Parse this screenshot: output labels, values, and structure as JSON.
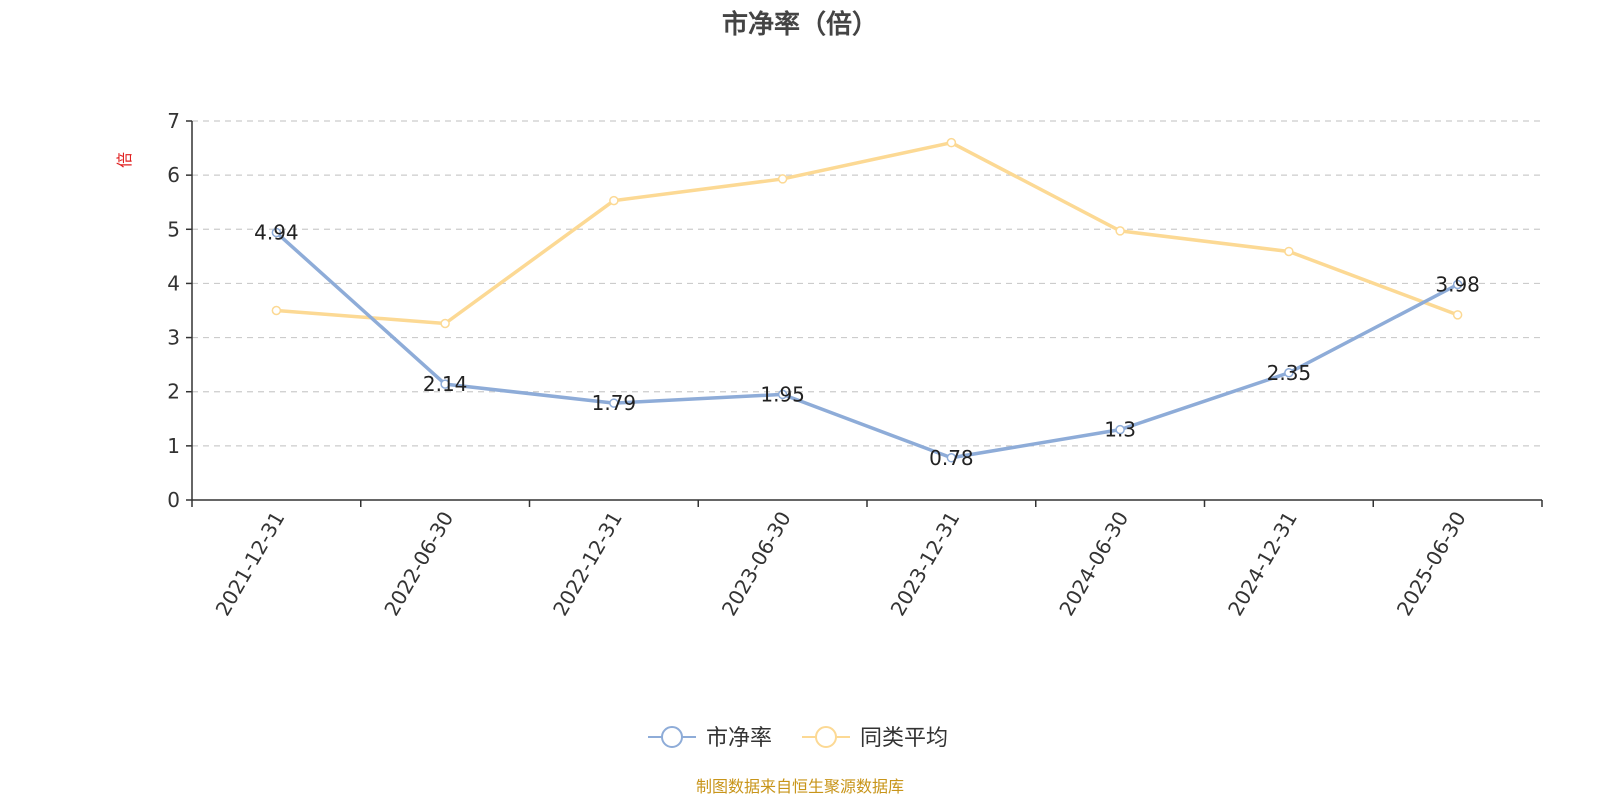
{
  "chart_data": {
    "type": "line",
    "title": "市净率（倍）",
    "ylabel": "倍",
    "ylim": [
      0,
      7
    ],
    "yticks": [
      "0",
      "1",
      "2",
      "3",
      "4",
      "5",
      "6",
      "7"
    ],
    "grid": true,
    "legend_position": "bottom",
    "categories": [
      "2021-12-31",
      "2022-06-30",
      "2022-12-31",
      "2023-06-30",
      "2023-12-31",
      "2024-06-30",
      "2024-12-31",
      "2025-06-30"
    ],
    "series": [
      {
        "name": "市净率",
        "values": [
          4.94,
          2.14,
          1.79,
          1.95,
          0.78,
          1.3,
          2.35,
          3.98
        ],
        "labels": [
          "4.94",
          "2.14",
          "1.79",
          "1.95",
          "0.78",
          "1.3",
          "2.35",
          "3.98"
        ],
        "color": "#8eacd8"
      },
      {
        "name": "同类平均",
        "values": [
          3.5,
          3.26,
          5.53,
          5.93,
          6.6,
          4.97,
          4.59,
          3.42
        ],
        "color": "#fcd994"
      }
    ]
  },
  "colors": {
    "unit": "#e01f1f",
    "source": "#c8951a",
    "axis": "#333333",
    "grid": "#cccccc"
  },
  "source": "制图数据来自恒生聚源数据库"
}
